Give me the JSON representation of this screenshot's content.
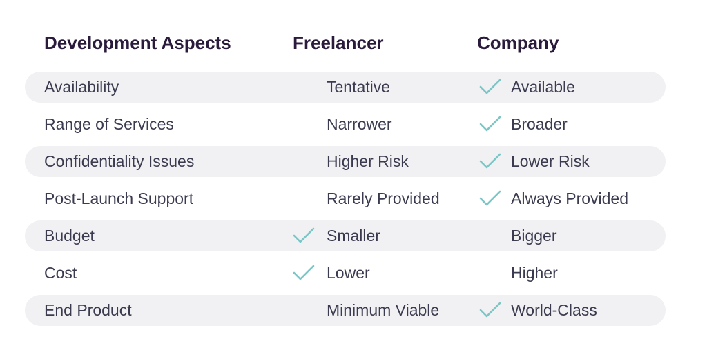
{
  "headers": {
    "aspect": "Development Aspects",
    "freelancer": "Freelancer",
    "company": "Company"
  },
  "colors": {
    "check": "#7cc6c6",
    "band": "#f1f1f4",
    "heading": "#2a1b3d",
    "text": "#3b3b4f"
  },
  "rows": [
    {
      "aspect": "Availability",
      "freelancer": "Tentative",
      "company": "Available",
      "check": "company",
      "shaded": true
    },
    {
      "aspect": "Range of Services",
      "freelancer": "Narrower",
      "company": "Broader",
      "check": "company",
      "shaded": false
    },
    {
      "aspect": "Confidentiality Issues",
      "freelancer": "Higher Risk",
      "company": "Lower Risk",
      "check": "company",
      "shaded": true
    },
    {
      "aspect": "Post-Launch Support",
      "freelancer": "Rarely Provided",
      "company": "Always Provided",
      "check": "company",
      "shaded": false
    },
    {
      "aspect": "Budget",
      "freelancer": "Smaller",
      "company": "Bigger",
      "check": "freelancer",
      "shaded": true
    },
    {
      "aspect": "Cost",
      "freelancer": "Lower",
      "company": "Higher",
      "check": "freelancer",
      "shaded": false
    },
    {
      "aspect": "End Product",
      "freelancer": "Minimum Viable",
      "company": "World-Class",
      "check": "company",
      "shaded": true
    }
  ]
}
